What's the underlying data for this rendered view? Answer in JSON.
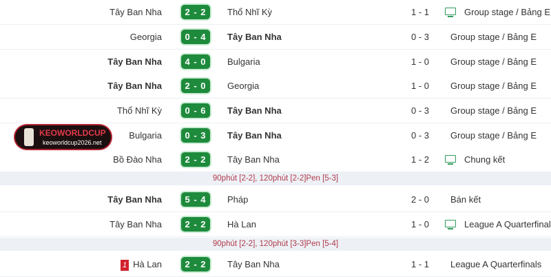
{
  "matches": [
    {
      "home": "Tây Ban Nha",
      "home_bold": false,
      "score": "2 - 2",
      "away": "Thổ Nhĩ Kỳ",
      "away_bold": false,
      "ht": "1 - 1",
      "tv": true,
      "competition": "Group stage / Bảng E"
    },
    {
      "home": "Georgia",
      "home_bold": false,
      "score": "0 - 4",
      "away": "Tây Ban Nha",
      "away_bold": true,
      "ht": "0 - 3",
      "tv": false,
      "competition": "Group stage / Bảng E"
    },
    {
      "home": "Tây Ban Nha",
      "home_bold": true,
      "score": "4 - 0",
      "away": "Bulgaria",
      "away_bold": false,
      "ht": "1 - 0",
      "tv": false,
      "competition": "Group stage / Bảng E"
    },
    {
      "home": "Tây Ban Nha",
      "home_bold": true,
      "score": "2 - 0",
      "away": "Georgia",
      "away_bold": false,
      "ht": "1 - 0",
      "tv": false,
      "competition": "Group stage / Bảng E"
    },
    {
      "home": "Thổ Nhĩ Kỳ",
      "home_bold": false,
      "score": "0 - 6",
      "away": "Tây Ban Nha",
      "away_bold": true,
      "ht": "0 - 3",
      "tv": false,
      "competition": "Group stage / Bảng E"
    },
    {
      "home": "Bulgaria",
      "home_bold": false,
      "score": "0 - 3",
      "away": "Tây Ban Nha",
      "away_bold": true,
      "ht": "0 - 3",
      "tv": false,
      "competition": "Group stage / Bảng E"
    },
    {
      "home": "Bồ Đào Nha",
      "home_bold": false,
      "score": "2 - 2",
      "away": "Tây Ban Nha",
      "away_bold": false,
      "ht": "1 - 2",
      "tv": true,
      "competition": "Chung kết",
      "note": "90phút [2-2], 120phút [2-2]Pen [5-3]"
    },
    {
      "home": "Tây Ban Nha",
      "home_bold": true,
      "score": "5 - 4",
      "away": "Pháp",
      "away_bold": false,
      "ht": "2 - 0",
      "tv": false,
      "competition": "Bán kết"
    },
    {
      "home": "Tây Ban Nha",
      "home_bold": false,
      "score": "2 - 2",
      "away": "Hà Lan",
      "away_bold": false,
      "ht": "1 - 0",
      "tv": true,
      "competition": "League A Quarterfinals",
      "note": "90phút [2-2], 120phút [3-3]Pen [5-4]"
    },
    {
      "home": "Hà Lan",
      "home_bold": false,
      "home_red_cards": "1",
      "score": "2 - 2",
      "away": "Tây Ban Nha",
      "away_bold": false,
      "ht": "1 - 1",
      "tv": false,
      "competition": "League A Quarterfinals"
    }
  ],
  "watermark": {
    "brand": "KEOWORLDCUP",
    "url": "keoworldcup2026.net"
  },
  "colors": {
    "score_bg": "#1e8a3c",
    "note_text": "#b03a4a",
    "red_card": "#d2222d"
  }
}
